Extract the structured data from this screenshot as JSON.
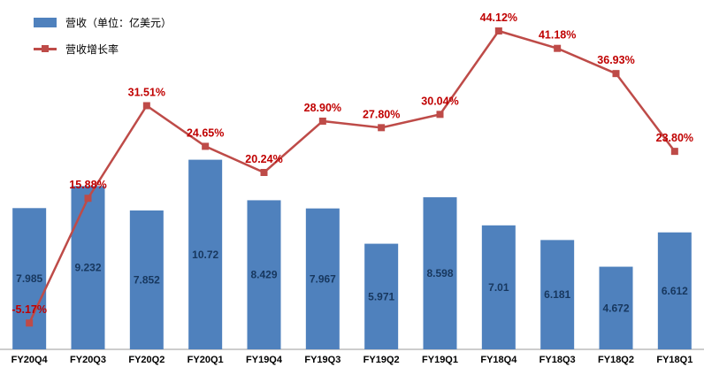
{
  "legend": {
    "revenue_label": "营收（单位：亿美元）",
    "growth_label": "营收增长率"
  },
  "colors": {
    "bar": "#4f81bd",
    "bar_label": "#17375e",
    "line": "#be4b48",
    "marker": "#be4b48",
    "growth_label": "#c00000",
    "axis": "#9b9b9b",
    "category_label": "#000000"
  },
  "chart_data": {
    "type": "bar-line-combo",
    "title": "",
    "xlabel": "",
    "ylabel": "",
    "grid": false,
    "legend_position": "top-left",
    "categories": [
      "FY20Q4",
      "FY20Q3",
      "FY20Q2",
      "FY20Q1",
      "FY19Q4",
      "FY19Q3",
      "FY19Q2",
      "FY19Q1",
      "FY18Q4",
      "FY18Q3",
      "FY18Q2",
      "FY18Q1"
    ],
    "series": [
      {
        "name": "营收（单位：亿美元）",
        "type": "bar",
        "values": [
          7.985,
          9.232,
          7.852,
          10.72,
          8.429,
          7.967,
          5.971,
          8.598,
          7.01,
          6.181,
          4.672,
          6.612
        ],
        "labels": [
          "7.985",
          "9.232",
          "7.852",
          "10.72",
          "8.429",
          "7.967",
          "5.971",
          "8.598",
          "7.01",
          "6.181",
          "4.672",
          "6.612"
        ]
      },
      {
        "name": "营收增长率",
        "type": "line",
        "values_pct": [
          -5.17,
          15.88,
          31.51,
          24.65,
          20.24,
          28.9,
          27.8,
          30.04,
          44.12,
          41.18,
          36.93,
          23.8
        ],
        "labels": [
          "-5.17%",
          "15.88%",
          "31.51%",
          "24.65%",
          "20.24%",
          "28.90%",
          "27.80%",
          "30.04%",
          "44.12%",
          "41.18%",
          "36.93%",
          "23.80%"
        ]
      }
    ]
  }
}
